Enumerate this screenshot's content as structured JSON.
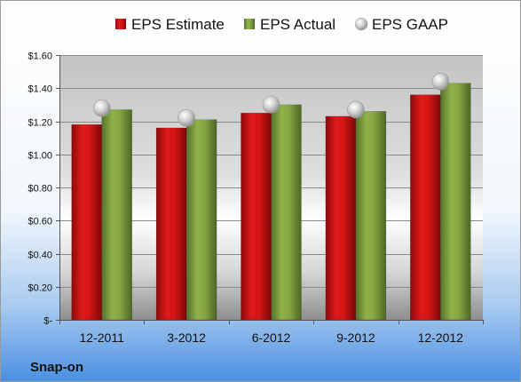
{
  "company": "Snap-on",
  "chart_data": {
    "type": "bar",
    "title": "",
    "xlabel": "",
    "ylabel": "",
    "categories": [
      "12-2011",
      "3-2012",
      "6-2012",
      "9-2012",
      "12-2012"
    ],
    "series": [
      {
        "name": "EPS Estimate",
        "kind": "bar",
        "color": "#cc1111",
        "values": [
          1.18,
          1.16,
          1.25,
          1.23,
          1.36
        ]
      },
      {
        "name": "EPS Actual",
        "kind": "bar",
        "color": "#7a9c3c",
        "values": [
          1.27,
          1.21,
          1.3,
          1.26,
          1.43
        ]
      },
      {
        "name": "EPS GAAP",
        "kind": "marker",
        "color": "#c4c4c4",
        "values": [
          1.28,
          1.22,
          1.3,
          1.27,
          1.44
        ]
      }
    ],
    "ylim": [
      0,
      1.6
    ],
    "yticks": [
      0,
      0.2,
      0.4,
      0.6,
      0.8,
      1.0,
      1.2,
      1.4,
      1.6
    ],
    "ytick_labels": [
      "$-",
      "$0.20",
      "$0.40",
      "$0.60",
      "$0.80",
      "$1.00",
      "$1.20",
      "$1.40",
      "$1.60"
    ],
    "grid": true,
    "legend_position": "top"
  }
}
